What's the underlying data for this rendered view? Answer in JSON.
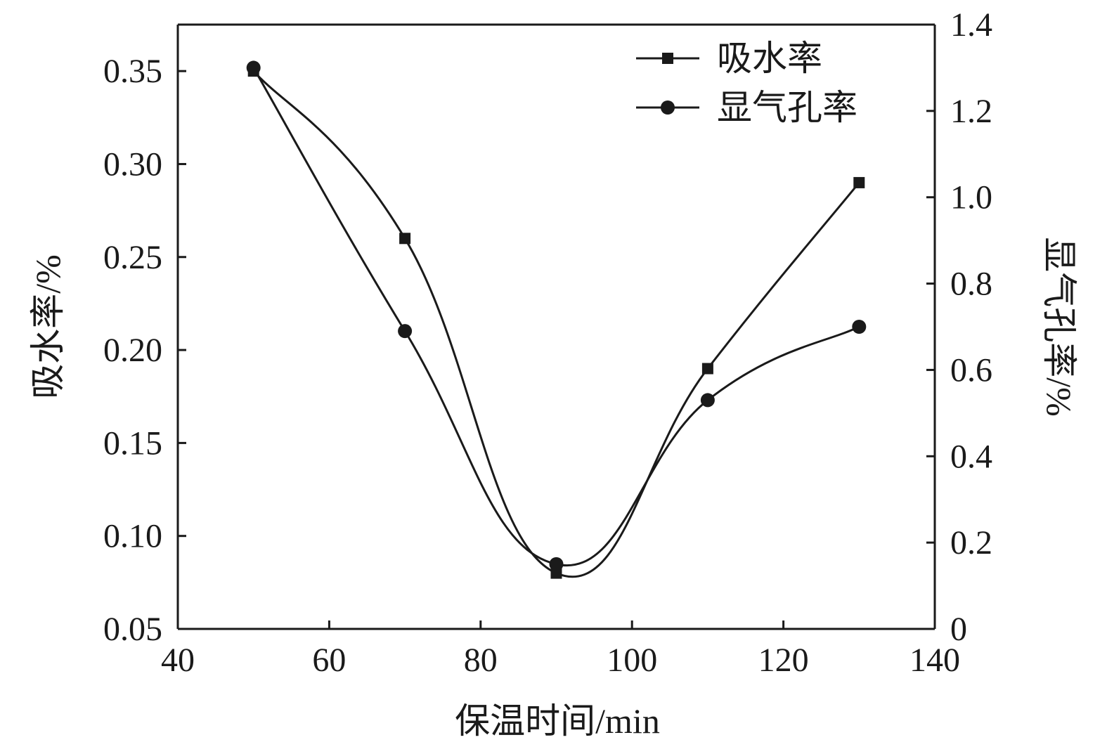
{
  "chart_data": {
    "type": "line",
    "title": "",
    "xlabel": "保温时间/min",
    "ylabel": "吸水率/%",
    "ylabel_right": "显气孔率/%",
    "xlim": [
      40,
      140
    ],
    "ylim": [
      0.05,
      0.375
    ],
    "ylim_right": [
      0,
      1.4
    ],
    "x_ticks": [
      40,
      60,
      80,
      100,
      120,
      140
    ],
    "x_tick_labels": [
      "40",
      "60",
      "80",
      "100",
      "120",
      "140"
    ],
    "y_ticks": [
      0.05,
      0.1,
      0.15,
      0.2,
      0.25,
      0.3,
      0.35
    ],
    "y_tick_labels": [
      "0.05",
      "0.10",
      "0.15",
      "0.20",
      "0.25",
      "0.30",
      "0.35"
    ],
    "y_right_ticks": [
      0,
      0.2,
      0.4,
      0.6,
      0.8,
      1.0,
      1.2,
      1.4
    ],
    "y_right_tick_labels": [
      "0",
      "0.2",
      "0.4",
      "0.6",
      "0.8",
      "1.0",
      "1.2",
      "1.4"
    ],
    "x": [
      50,
      70,
      90,
      110,
      130
    ],
    "series": [
      {
        "name": "吸水率",
        "axis": "left",
        "marker": "square",
        "values": [
          0.35,
          0.26,
          0.08,
          0.19,
          0.29
        ]
      },
      {
        "name": "显气孔率",
        "axis": "right",
        "marker": "circle",
        "values": [
          1.3,
          0.69,
          0.15,
          0.53,
          0.7
        ]
      }
    ],
    "legend_position": "top-right",
    "grid": false,
    "line_color": "#1a1a1a"
  }
}
